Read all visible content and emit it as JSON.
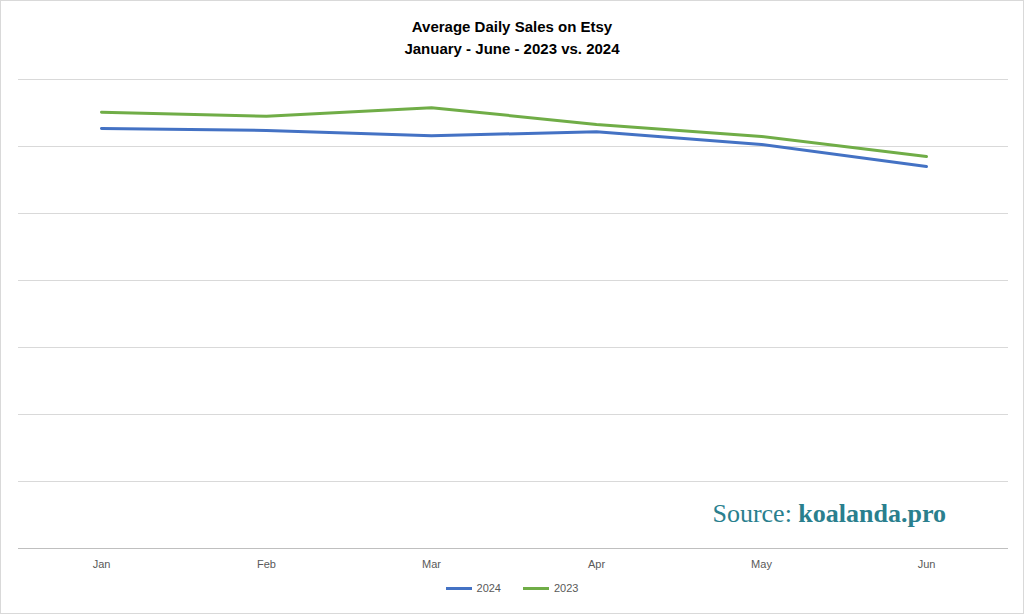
{
  "chart_data": {
    "type": "line",
    "title": "Average Daily Sales on Etsy",
    "subtitle": "January - June - 2023 vs. 2024",
    "categories": [
      "Jan",
      "Feb",
      "Mar",
      "Apr",
      "May",
      "Jun"
    ],
    "series": [
      {
        "name": "2024",
        "color": "#4472c4",
        "values": [
          6.27,
          6.24,
          6.16,
          6.22,
          6.03,
          5.7
        ]
      },
      {
        "name": "2023",
        "color": "#70ad47",
        "values": [
          6.51,
          6.45,
          6.58,
          6.33,
          6.15,
          5.85
        ]
      }
    ],
    "ylim": [
      0,
      7
    ],
    "yticks": [
      0,
      1,
      2,
      3,
      4,
      5,
      6,
      7
    ],
    "grid": true,
    "legend": "bottom",
    "tick_labels": "x",
    "annotations": [
      "Source: koalanda.pro"
    ]
  }
}
